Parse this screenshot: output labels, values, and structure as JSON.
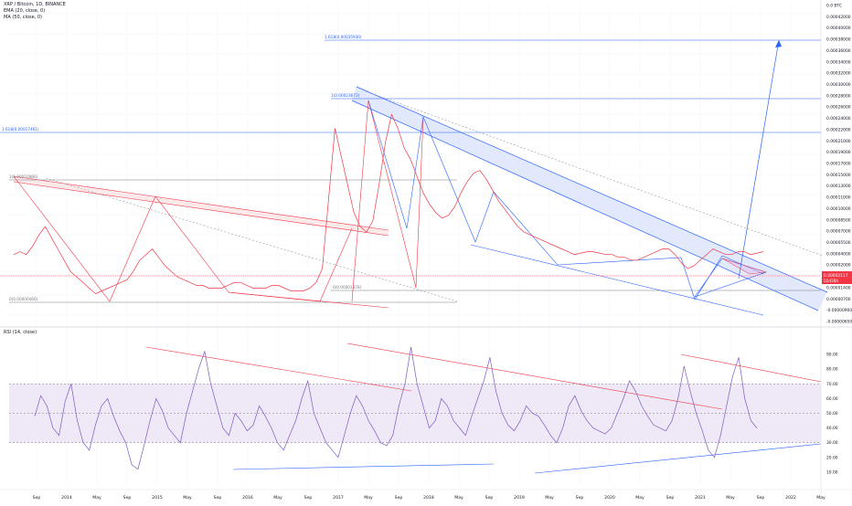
{
  "legend": {
    "symbol": "XRP / Bitcoin, 1D, BINANCE",
    "ema": "EMA (20, close, 0)",
    "ma": "MA (50, close, 0)",
    "rsi": "RSI (14, close)"
  },
  "colors": {
    "accent_blue": "#2962ff",
    "price_line": "#f23645",
    "rsi_line": "#7e57c2",
    "trend_red": "#f23645",
    "band_fill": "#dbe4fb",
    "rsi_band": "#ede7f6",
    "grid": "#f0f3fa"
  },
  "chart_data": [
    {
      "type": "line",
      "title": "XRP / Bitcoin, 1D, BINANCE",
      "x_tick_labels": [
        "Sep",
        "2014",
        "May",
        "Sep",
        "2015",
        "May",
        "Sep",
        "2016",
        "May",
        "Sep",
        "2017",
        "May",
        "Sep",
        "2018",
        "May",
        "Sep",
        "2019",
        "May",
        "Sep",
        "2020",
        "May",
        "Sep",
        "2021",
        "May",
        "Sep",
        "2022",
        "May"
      ],
      "y_axis": {
        "labels": [
          "0.0 BTC",
          "0.00042000",
          "0.00040000",
          "0.00038000",
          "0.00036000",
          "0.00034000",
          "0.00032000",
          "0.00030000",
          "0.00028000",
          "0.00026000",
          "0.00024000",
          "0.00022000",
          "0.00021000",
          "0.00019000",
          "0.00017000",
          "0.00015000",
          "0.00013000",
          "0.00011000",
          "0.00010000",
          "0.00008500",
          "0.00007000",
          "0.00005500",
          "0.00004000",
          "0.00002000",
          "0.00000800",
          "0.00001400",
          "0.00000700",
          "-0.00000900",
          "-0.00000650"
        ],
        "current_price_tags": [
          "0.00002117",
          "02d16h"
        ]
      },
      "fib_labels": [
        "1.618(0.00035930)",
        "1(0.00023672)",
        "1.618(0.00017461)",
        "1(0.00010986)",
        "0(0.00000466)",
        "0(0.00001378)"
      ],
      "series": [
        {
          "values": [
            2.0,
            2.1,
            2.0,
            2.3,
            2.7,
            3.0,
            2.6,
            2.2,
            1.8,
            1.4,
            1.2,
            1.0,
            0.8,
            0.6,
            0.7,
            0.8,
            0.9,
            1.0,
            1.1,
            1.4,
            1.8,
            2.0,
            2.2,
            1.9,
            1.6,
            1.4,
            1.2,
            1.1,
            1.0,
            0.9,
            0.9,
            0.8,
            0.8,
            0.8,
            0.9,
            1.0,
            1.0,
            0.9,
            0.8,
            0.8,
            0.8,
            0.9,
            0.9,
            0.8,
            0.7,
            0.7,
            0.7,
            0.8,
            1.0,
            1.5,
            4.0,
            6.5,
            5.5,
            4.5,
            3.5,
            3.0,
            2.8,
            3.2,
            4.5,
            6.0,
            7.0,
            6.5,
            5.8,
            5.4,
            4.8,
            4.2,
            3.8,
            3.5,
            3.3,
            3.4,
            3.7,
            4.2,
            4.6,
            4.9,
            5.0,
            4.7,
            4.3,
            3.9,
            3.6,
            3.3,
            3.0,
            2.8,
            2.7,
            2.6,
            2.5,
            2.4,
            2.3,
            2.2,
            2.1,
            2.0,
            2.05,
            2.1,
            2.1,
            2.05,
            2.0,
            2.0,
            1.9,
            1.9,
            1.8,
            1.8,
            1.9,
            2.0,
            2.1,
            2.2,
            2.2,
            2.0,
            1.7,
            1.5,
            1.6,
            1.8,
            2.0,
            2.2,
            2.1,
            2.0,
            2.0,
            2.1,
            2.1,
            2.0,
            2.05,
            2.1
          ]
        }
      ]
    },
    {
      "type": "line",
      "title": "RSI (14, close)",
      "y_tick_labels": [
        "90.00",
        "80.00",
        "70.00",
        "60.00",
        "50.00",
        "40.00",
        "30.00",
        "20.00",
        "10.00"
      ],
      "ylim": [
        5,
        95
      ],
      "band": [
        30,
        70
      ],
      "midline": 50,
      "series": [
        {
          "values": [
            48,
            62,
            55,
            40,
            35,
            58,
            70,
            45,
            30,
            25,
            42,
            55,
            60,
            48,
            38,
            30,
            15,
            12,
            28,
            45,
            60,
            52,
            40,
            35,
            30,
            50,
            65,
            80,
            92,
            70,
            55,
            40,
            35,
            50,
            45,
            38,
            42,
            55,
            48,
            40,
            30,
            25,
            35,
            45,
            60,
            72,
            50,
            40,
            30,
            25,
            20,
            35,
            50,
            62,
            55,
            45,
            38,
            30,
            28,
            35,
            55,
            70,
            95,
            70,
            55,
            40,
            45,
            60,
            55,
            45,
            40,
            35,
            48,
            60,
            72,
            88,
            65,
            50,
            42,
            38,
            45,
            55,
            50,
            48,
            42,
            35,
            30,
            40,
            55,
            62,
            52,
            45,
            40,
            38,
            36,
            40,
            50,
            60,
            72,
            65,
            55,
            48,
            42,
            40,
            38,
            45,
            60,
            82,
            65,
            50,
            38,
            25,
            20,
            35,
            55,
            75,
            88,
            60,
            45,
            40
          ]
        }
      ]
    }
  ]
}
